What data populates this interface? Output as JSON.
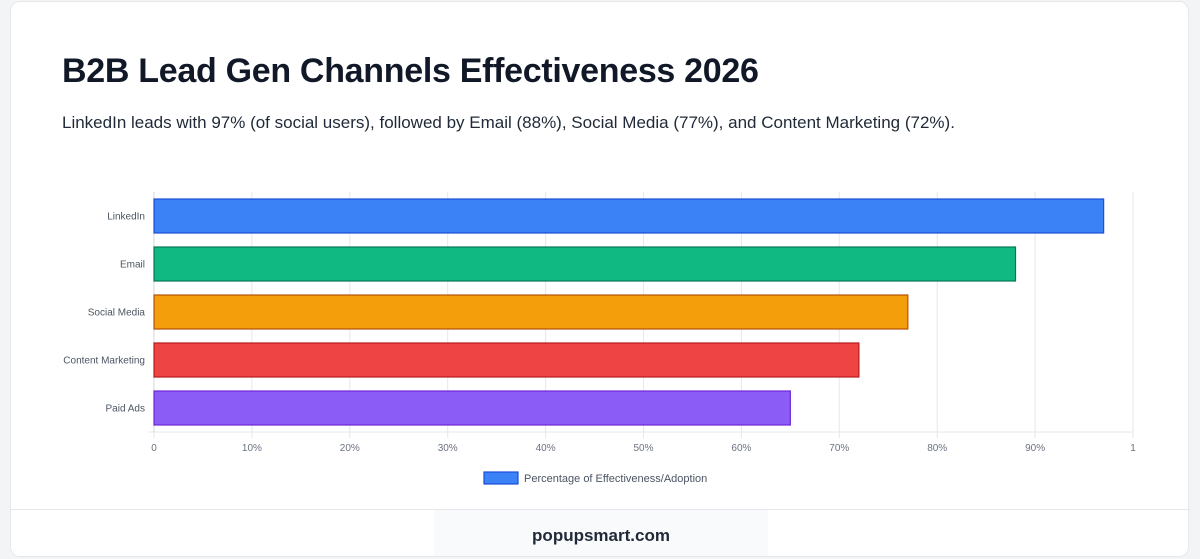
{
  "header": {
    "title": "B2B Lead Gen Channels Effectiveness 2026",
    "subtitle": "LinkedIn leads with 97% (of social users), followed by Email (88%), Social Media (77%), and Content Marketing (72%)."
  },
  "chart_data": {
    "type": "bar",
    "orientation": "horizontal",
    "categories": [
      "LinkedIn",
      "Email",
      "Social Media",
      "Content Marketing",
      "Paid Ads"
    ],
    "series": [
      {
        "name": "Percentage of Effectiveness/Adoption",
        "values": [
          0.97,
          0.88,
          0.77,
          0.72,
          0.65
        ]
      }
    ],
    "bar_colors": [
      "#3b82f6",
      "#10b981",
      "#f59e0b",
      "#ef4444",
      "#8b5cf6"
    ],
    "bar_border_colors": [
      "#1d4ed8",
      "#047857",
      "#b45309",
      "#b91c1c",
      "#6d28d9"
    ],
    "xlim": [
      0,
      1
    ],
    "xticks": [
      0,
      0.1,
      0.2,
      0.3,
      0.4,
      0.5,
      0.6,
      0.7,
      0.8,
      0.9,
      1
    ],
    "xtick_labels": [
      "0",
      "10%",
      "20%",
      "30%",
      "40%",
      "50%",
      "60%",
      "70%",
      "80%",
      "90%",
      "1"
    ],
    "grid": true,
    "legend_position": "bottom"
  },
  "footer": {
    "brand": "popupsmart.com"
  }
}
